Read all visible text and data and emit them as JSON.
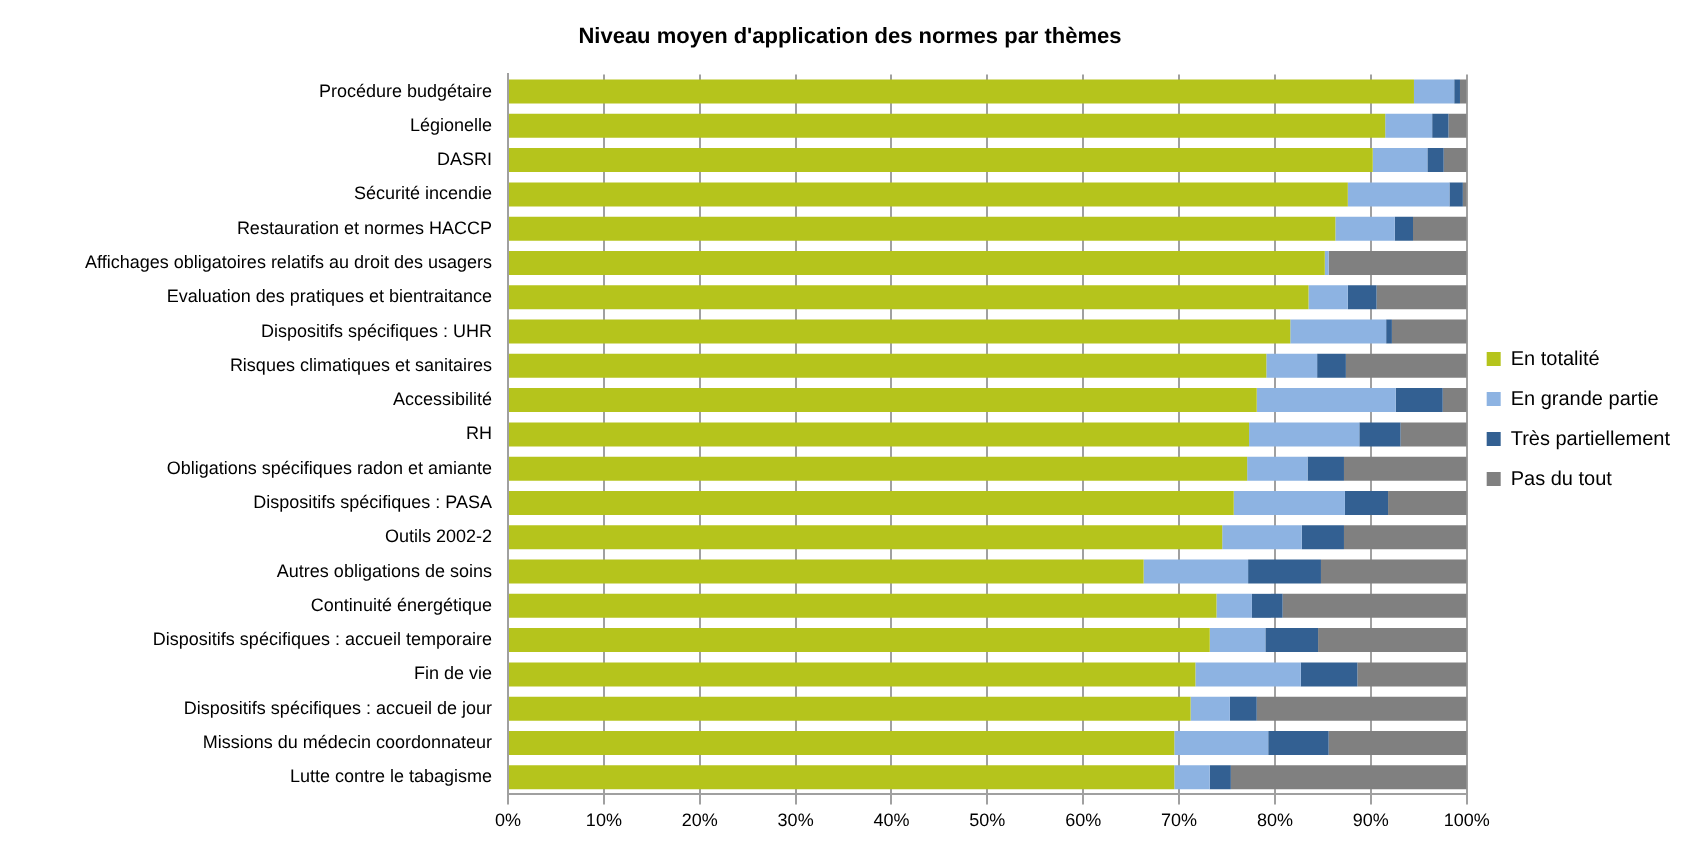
{
  "chart_data": {
    "type": "bar",
    "orientation": "horizontal",
    "stacked": true,
    "title": "Niveau moyen d'application des normes par thèmes",
    "categories": [
      "Procédure budgétaire",
      "Légionelle",
      "DASRI",
      "Sécurité incendie",
      "Restauration et normes HACCP",
      "Affichages obligatoires relatifs au droit des usagers",
      "Evaluation des pratiques et bientraitance",
      "Dispositifs spécifiques : UHR",
      "Risques climatiques et sanitaires",
      "Accessibilité",
      "RH",
      "Obligations spécifiques radon et amiante",
      "Dispositifs spécifiques : PASA",
      "Outils 2002-2",
      "Autres obligations de soins",
      "Continuité énergétique",
      "Dispositifs spécifiques : accueil temporaire",
      "Fin de vie",
      "Dispositifs spécifiques : accueil de jour",
      "Missions du médecin coordonnateur",
      "Lutte contre le tabagisme"
    ],
    "series": [
      {
        "name": "En totalité",
        "color": "#b5c41c",
        "values": [
          94.5,
          91.5,
          90.2,
          87.6,
          86.3,
          85.2,
          83.5,
          81.6,
          79.1,
          78.1,
          77.3,
          77.1,
          75.7,
          74.5,
          66.3,
          73.9,
          73.2,
          71.7,
          71.2,
          69.5,
          69.5
        ]
      },
      {
        "name": "En grande partie",
        "color": "#8db3e2",
        "values": [
          4.2,
          4.9,
          5.7,
          10.6,
          6.2,
          0.4,
          4.1,
          10.0,
          5.3,
          14.5,
          11.5,
          6.3,
          11.6,
          8.3,
          10.9,
          3.7,
          5.8,
          11.0,
          4.1,
          9.8,
          3.7
        ]
      },
      {
        "name": "Très partiellement",
        "color": "#336092",
        "values": [
          0.6,
          1.7,
          1.7,
          1.4,
          1.9,
          0,
          3.0,
          0.6,
          3.0,
          4.9,
          4.3,
          3.8,
          4.5,
          4.4,
          7.6,
          3.2,
          5.5,
          5.9,
          2.8,
          6.3,
          2.2
        ]
      },
      {
        "name": "Pas du tout",
        "color": "#808080",
        "values": [
          0.7,
          1.9,
          2.4,
          0.4,
          5.6,
          14.4,
          9.4,
          7.8,
          12.6,
          2.5,
          6.9,
          12.8,
          8.2,
          12.8,
          15.2,
          19.2,
          15.5,
          11.4,
          21.9,
          14.4,
          24.6
        ]
      }
    ],
    "xlim": [
      0,
      100
    ],
    "xticks": [
      {
        "value": 0,
        "label": "0%"
      },
      {
        "value": 10,
        "label": "10%"
      },
      {
        "value": 20,
        "label": "20%"
      },
      {
        "value": 30,
        "label": "30%"
      },
      {
        "value": 40,
        "label": "40%"
      },
      {
        "value": 50,
        "label": "50%"
      },
      {
        "value": 60,
        "label": "60%"
      },
      {
        "value": 70,
        "label": "70%"
      },
      {
        "value": 80,
        "label": "80%"
      },
      {
        "value": 90,
        "label": "90%"
      },
      {
        "value": 100,
        "label": "100%"
      }
    ],
    "grid": "x",
    "legend": "right"
  }
}
